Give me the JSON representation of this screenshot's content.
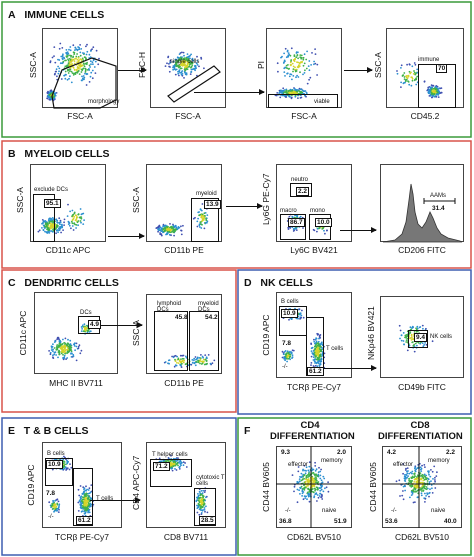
{
  "panels": {
    "A": {
      "letter": "A",
      "title": "IMMUNE CELLS",
      "color": "#3a9a3a"
    },
    "B": {
      "letter": "B",
      "title": "MYELOID CELLS",
      "color": "#d9534a"
    },
    "C": {
      "letter": "C",
      "title": "DENDRITIC CELLS",
      "color": "#d9534a"
    },
    "D": {
      "letter": "D",
      "title": "NK CELLS",
      "color": "#3f5fb0"
    },
    "E": {
      "letter": "E",
      "title": "T & B CELLS",
      "color": "#3f5fb0"
    },
    "F": {
      "letter": "F",
      "title": "",
      "color": "#3a9a3a"
    }
  },
  "plots": {
    "a1": {
      "x": "FSC-A",
      "y": "SSC-A",
      "gate": "morphology"
    },
    "a2": {
      "x": "FSC-A",
      "y": "FSC-H",
      "gate": "single cells"
    },
    "a3": {
      "x": "FSC-A",
      "y": "PI",
      "gate": "viable"
    },
    "a4": {
      "x": "CD45.2",
      "y": "SSC-A",
      "gate": "immune",
      "value": "70"
    },
    "b1": {
      "x": "CD11c APC",
      "y": "SSC-A",
      "gate": "exclude DCs",
      "value": "95.1"
    },
    "b2": {
      "x": "CD11b PE",
      "y": "SSC-A",
      "gate": "myeloid",
      "value": "13.9"
    },
    "b3": {
      "x": "Ly6C BV421",
      "y": "Ly6G PE-Cy7",
      "gate1": "neutro",
      "v1": "2.2",
      "gate2": "macro",
      "v2": "86.7",
      "gate3": "mono",
      "v3": "10.0"
    },
    "b4": {
      "x": "CD206 FITC",
      "y": "",
      "gate": "AAMs",
      "value": "31.4"
    },
    "c1": {
      "x": "MHC II BV711",
      "y": "CD11c APC",
      "gate": "DCs",
      "value": "4.9"
    },
    "c2": {
      "x": "CD11b PE",
      "y": "SSC-A",
      "gate1": "lymphoid DCs",
      "v1": "45.8",
      "gate2": "myeloid DCs",
      "v2": "54.2"
    },
    "d1": {
      "x": "TCRβ PE-Cy7",
      "y": "CD19 APC",
      "gate1": "B cells",
      "v1": "10.9",
      "gate2": "T cells",
      "v2": "61.2",
      "q": "7.8",
      "neg": "-/-"
    },
    "d2": {
      "x": "CD49b FITC",
      "y": "NKp46 BV421",
      "gate": "NK cells",
      "value": "9.4"
    },
    "e1": {
      "x": "TCRβ PE-Cy7",
      "y": "CD19 APC",
      "gate1": "B cells",
      "v1": "10.9",
      "gate2": "T cells",
      "v2": "61.2",
      "q": "7.8",
      "neg": "-/-"
    },
    "e2": {
      "x": "CD8 BV711",
      "y": "CD4 APC-Cy7",
      "gate1": "T helper cells",
      "v1": "71.2",
      "gate2": "cytotoxic T cells",
      "v2": "28.5"
    },
    "f1": {
      "title": "CD4\nDIFFERENTIATION",
      "x": "CD62L BV510",
      "y": "CD44 BV605",
      "ul": "9.3",
      "ur": "2.0",
      "ll": "36.8",
      "lr": "51.9",
      "lab_ul": "effector",
      "lab_ur": "memory",
      "lab_ll": "-/-",
      "lab_lr": "naive"
    },
    "f2": {
      "title": "CD8\nDIFFERENTIATION",
      "x": "CD62L BV510",
      "y": "CD44 BV605",
      "ul": "4.2",
      "ur": "2.2",
      "ll": "53.6",
      "lr": "40.0",
      "lab_ul": "effector",
      "lab_ur": "memory",
      "lab_ll": "-/-",
      "lab_lr": "naive"
    }
  }
}
